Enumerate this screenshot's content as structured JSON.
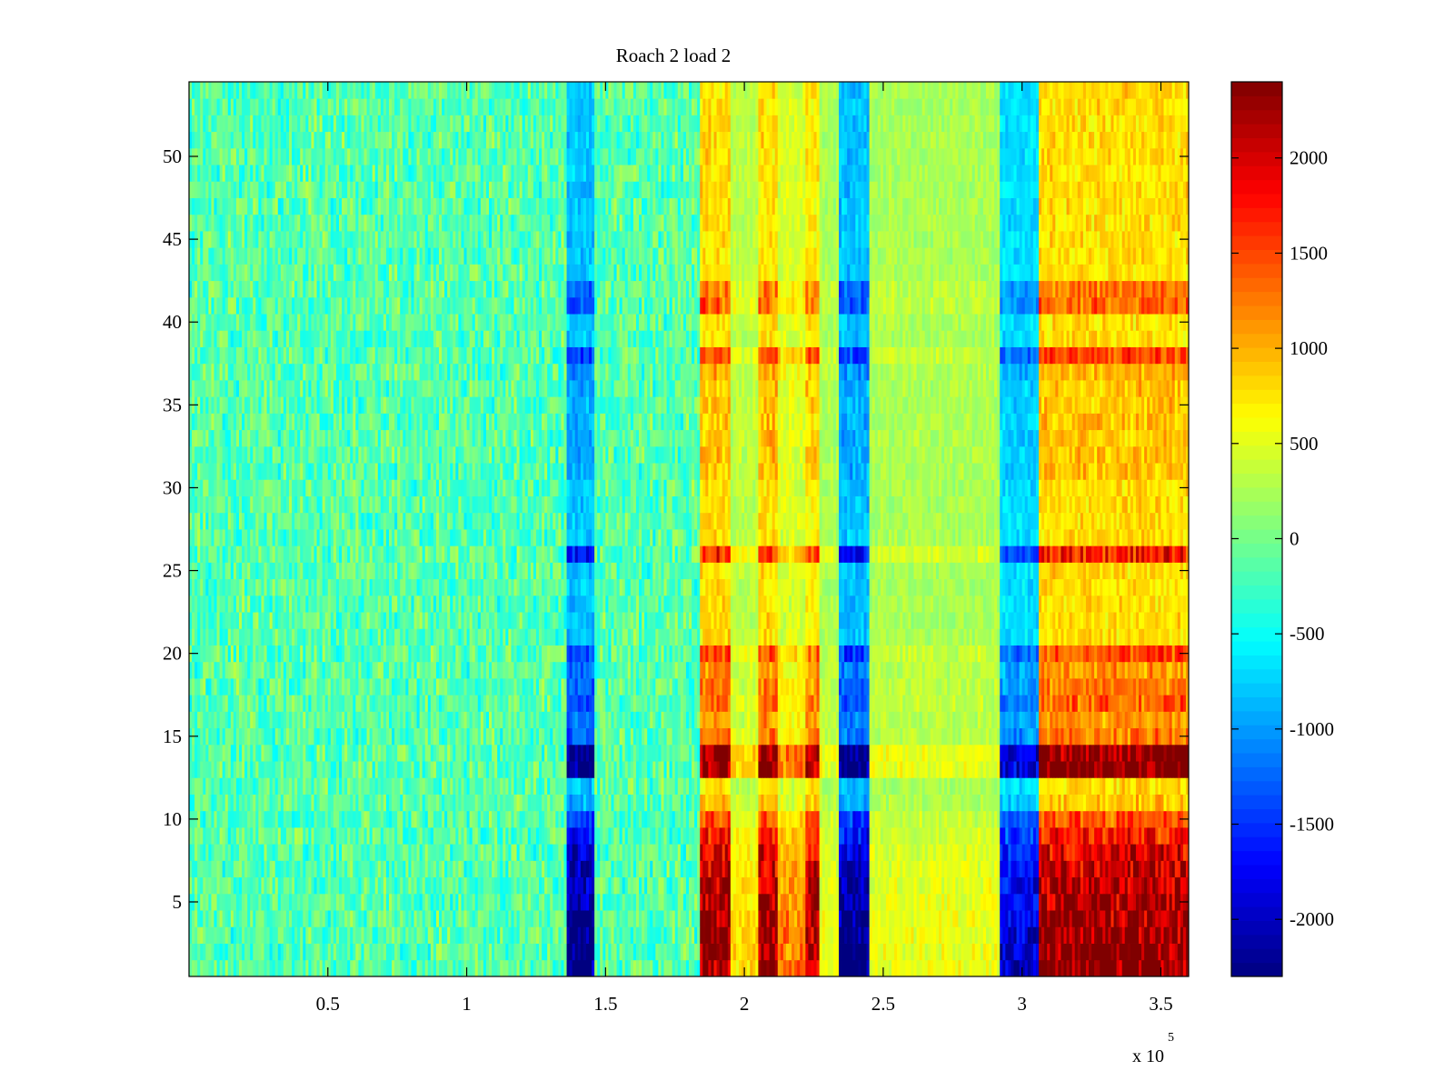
{
  "chart_data": {
    "type": "heatmap",
    "title": "Roach 2 load 2",
    "xlabel": "",
    "ylabel": "",
    "x_exponent_label": {
      "base": "x 10",
      "exponent": "5"
    },
    "xlim": [
      0.0,
      3.6
    ],
    "ylim": [
      0.5,
      54.5
    ],
    "x_ticks": [
      {
        "value": 0.5,
        "label": "0.5"
      },
      {
        "value": 1.0,
        "label": "1"
      },
      {
        "value": 1.5,
        "label": "1.5"
      },
      {
        "value": 2.0,
        "label": "2"
      },
      {
        "value": 2.5,
        "label": "2.5"
      },
      {
        "value": 3.0,
        "label": "3"
      },
      {
        "value": 3.5,
        "label": "3.5"
      }
    ],
    "y_ticks": [
      {
        "value": 5,
        "label": "5"
      },
      {
        "value": 10,
        "label": "10"
      },
      {
        "value": 15,
        "label": "15"
      },
      {
        "value": 20,
        "label": "20"
      },
      {
        "value": 25,
        "label": "25"
      },
      {
        "value": 30,
        "label": "30"
      },
      {
        "value": 35,
        "label": "35"
      },
      {
        "value": 40,
        "label": "40"
      },
      {
        "value": 45,
        "label": "45"
      },
      {
        "value": 50,
        "label": "50"
      }
    ],
    "colorbar": {
      "colormap": "jet",
      "clim": [
        -2300,
        2400
      ],
      "ticks": [
        {
          "value": 2000,
          "label": "2000"
        },
        {
          "value": 1500,
          "label": "1500"
        },
        {
          "value": 1000,
          "label": "1000"
        },
        {
          "value": 500,
          "label": "500"
        },
        {
          "value": 0,
          "label": "0"
        },
        {
          "value": -500,
          "label": "-500"
        },
        {
          "value": -1000,
          "label": "-1000"
        },
        {
          "value": -1500,
          "label": "-1500"
        },
        {
          "value": -2000,
          "label": "-2000"
        }
      ]
    },
    "rows": 54,
    "time_segments": [
      {
        "x0": 0.0,
        "x1": 1.36,
        "level": 0
      },
      {
        "x0": 1.36,
        "x1": 1.46,
        "level": -1
      },
      {
        "x0": 1.46,
        "x1": 1.84,
        "level": 0
      },
      {
        "x0": 1.84,
        "x1": 1.95,
        "level": 1
      },
      {
        "x0": 1.95,
        "x1": 2.05,
        "level": 0.3
      },
      {
        "x0": 2.05,
        "x1": 2.12,
        "level": 1
      },
      {
        "x0": 2.12,
        "x1": 2.22,
        "level": 0.5
      },
      {
        "x0": 2.22,
        "x1": 2.27,
        "level": 0.9
      },
      {
        "x0": 2.27,
        "x1": 2.34,
        "level": 0.2
      },
      {
        "x0": 2.34,
        "x1": 2.45,
        "level": -1
      },
      {
        "x0": 2.45,
        "x1": 2.92,
        "level": 0.2
      },
      {
        "x0": 2.92,
        "x1": 3.06,
        "level": -0.8
      },
      {
        "x0": 3.06,
        "x1": 3.6,
        "level": 1
      }
    ],
    "row_strength": [
      1.0,
      1.0,
      1.0,
      0.95,
      0.92,
      0.9,
      0.85,
      0.8,
      0.7,
      0.6,
      0.35,
      0.3,
      1.0,
      1.0,
      0.5,
      0.45,
      0.55,
      0.5,
      0.45,
      0.6,
      0.3,
      0.3,
      0.3,
      0.3,
      0.3,
      0.7,
      0.3,
      0.3,
      0.3,
      0.3,
      0.35,
      0.35,
      0.35,
      0.35,
      0.35,
      0.35,
      0.4,
      0.6,
      0.3,
      0.3,
      0.55,
      0.5,
      0.3,
      0.3,
      0.3,
      0.3,
      0.3,
      0.3,
      0.3,
      0.3,
      0.3,
      0.3,
      0.3,
      0.3
    ]
  }
}
